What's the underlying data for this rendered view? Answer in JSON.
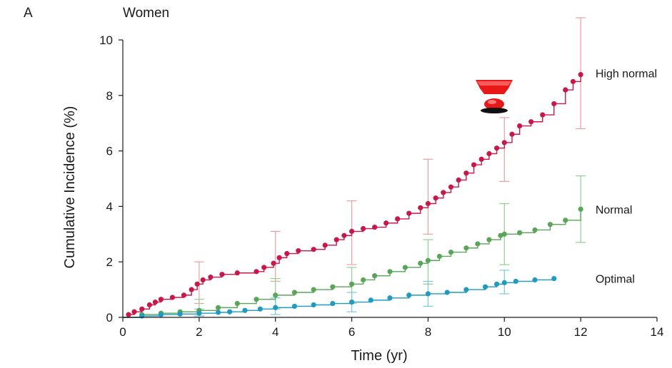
{
  "panel_letter": "A",
  "chart_data": {
    "type": "line",
    "title": "Women",
    "xlabel": "Time (yr)",
    "ylabel": "Cumulative Incidence (%)",
    "xlim": [
      0,
      14
    ],
    "ylim": [
      0,
      10
    ],
    "x_ticks": [
      0,
      2,
      4,
      6,
      8,
      10,
      12,
      14
    ],
    "y_ticks": [
      0,
      2,
      4,
      6,
      8,
      10
    ],
    "grid": false,
    "legend": "direct labels at right end of each series",
    "series": [
      {
        "name": "High normal",
        "color": "#c8184a",
        "error_color": "#e8a0a0",
        "points": [
          [
            0,
            0
          ],
          [
            0.15,
            0.1
          ],
          [
            0.3,
            0.2
          ],
          [
            0.5,
            0.3
          ],
          [
            0.7,
            0.45
          ],
          [
            0.85,
            0.55
          ],
          [
            1.0,
            0.65
          ],
          [
            1.3,
            0.72
          ],
          [
            1.6,
            0.8
          ],
          [
            1.8,
            1.0
          ],
          [
            1.95,
            1.2
          ],
          [
            2.1,
            1.35
          ],
          [
            2.3,
            1.45
          ],
          [
            2.6,
            1.55
          ],
          [
            3.0,
            1.6
          ],
          [
            3.5,
            1.65
          ],
          [
            3.7,
            1.8
          ],
          [
            3.95,
            1.95
          ],
          [
            4.1,
            2.15
          ],
          [
            4.3,
            2.3
          ],
          [
            4.6,
            2.4
          ],
          [
            5.0,
            2.45
          ],
          [
            5.3,
            2.6
          ],
          [
            5.6,
            2.8
          ],
          [
            5.8,
            2.95
          ],
          [
            6.0,
            3.1
          ],
          [
            6.3,
            3.2
          ],
          [
            6.6,
            3.25
          ],
          [
            6.9,
            3.4
          ],
          [
            7.2,
            3.55
          ],
          [
            7.5,
            3.75
          ],
          [
            7.8,
            3.95
          ],
          [
            8.0,
            4.1
          ],
          [
            8.2,
            4.3
          ],
          [
            8.4,
            4.5
          ],
          [
            8.6,
            4.7
          ],
          [
            8.8,
            4.95
          ],
          [
            9.0,
            5.2
          ],
          [
            9.2,
            5.5
          ],
          [
            9.4,
            5.7
          ],
          [
            9.6,
            5.9
          ],
          [
            9.8,
            6.1
          ],
          [
            10.0,
            6.3
          ],
          [
            10.2,
            6.6
          ],
          [
            10.4,
            6.9
          ],
          [
            10.7,
            7.05
          ],
          [
            11.0,
            7.3
          ],
          [
            11.3,
            7.7
          ],
          [
            11.6,
            8.2
          ],
          [
            11.8,
            8.5
          ],
          [
            12.0,
            8.75
          ]
        ],
        "error_bars": [
          {
            "x": 2,
            "y": 1.2,
            "low": 0.5,
            "high": 2.0
          },
          {
            "x": 4,
            "y": 2.1,
            "low": 1.3,
            "high": 3.1
          },
          {
            "x": 6,
            "y": 3.1,
            "low": 1.9,
            "high": 4.2
          },
          {
            "x": 8,
            "y": 4.35,
            "low": 3.0,
            "high": 5.7
          },
          {
            "x": 10,
            "y": 6.3,
            "low": 4.9,
            "high": 7.2
          },
          {
            "x": 12,
            "y": 8.75,
            "low": 6.8,
            "high": 10.8
          }
        ],
        "label_position": [
          12.2,
          8.8
        ]
      },
      {
        "name": "Normal",
        "color": "#5aa55a",
        "error_color": "#8fcf8f",
        "points": [
          [
            0,
            0
          ],
          [
            0.5,
            0.1
          ],
          [
            1.0,
            0.15
          ],
          [
            1.5,
            0.2
          ],
          [
            2.0,
            0.25
          ],
          [
            2.5,
            0.35
          ],
          [
            3.0,
            0.5
          ],
          [
            3.5,
            0.65
          ],
          [
            4.0,
            0.8
          ],
          [
            4.5,
            0.9
          ],
          [
            5.0,
            1.0
          ],
          [
            5.5,
            1.1
          ],
          [
            6.0,
            1.2
          ],
          [
            6.3,
            1.35
          ],
          [
            6.6,
            1.5
          ],
          [
            7.0,
            1.65
          ],
          [
            7.4,
            1.8
          ],
          [
            7.8,
            1.95
          ],
          [
            8.0,
            2.05
          ],
          [
            8.3,
            2.2
          ],
          [
            8.6,
            2.35
          ],
          [
            9.0,
            2.5
          ],
          [
            9.3,
            2.65
          ],
          [
            9.6,
            2.8
          ],
          [
            9.9,
            2.95
          ],
          [
            10.0,
            3.0
          ],
          [
            10.4,
            3.05
          ],
          [
            10.8,
            3.15
          ],
          [
            11.2,
            3.35
          ],
          [
            11.6,
            3.5
          ],
          [
            12.0,
            3.9
          ]
        ],
        "error_bars": [
          {
            "x": 2,
            "y": 0.25,
            "low": 0.05,
            "high": 0.65
          },
          {
            "x": 4,
            "y": 0.8,
            "low": 0.3,
            "high": 1.4
          },
          {
            "x": 6,
            "y": 1.2,
            "low": 0.5,
            "high": 1.8
          },
          {
            "x": 8,
            "y": 2.05,
            "low": 1.2,
            "high": 2.8
          },
          {
            "x": 10,
            "y": 3.0,
            "low": 1.9,
            "high": 4.1
          },
          {
            "x": 12,
            "y": 3.9,
            "low": 2.7,
            "high": 5.1
          }
        ],
        "label_position": [
          12.2,
          3.9
        ]
      },
      {
        "name": "Optimal",
        "color": "#1e9bbf",
        "error_color": "#7cc8dc",
        "points": [
          [
            0,
            0
          ],
          [
            0.5,
            0.05
          ],
          [
            1.0,
            0.1
          ],
          [
            1.5,
            0.12
          ],
          [
            2.0,
            0.15
          ],
          [
            2.5,
            0.18
          ],
          [
            2.8,
            0.2
          ],
          [
            3.2,
            0.25
          ],
          [
            3.6,
            0.3
          ],
          [
            4.0,
            0.35
          ],
          [
            4.5,
            0.4
          ],
          [
            5.0,
            0.45
          ],
          [
            5.5,
            0.5
          ],
          [
            6.0,
            0.55
          ],
          [
            6.5,
            0.62
          ],
          [
            7.0,
            0.7
          ],
          [
            7.5,
            0.8
          ],
          [
            8.0,
            0.85
          ],
          [
            8.5,
            0.9
          ],
          [
            9.0,
            1.0
          ],
          [
            9.5,
            1.1
          ],
          [
            9.8,
            1.2
          ],
          [
            10.0,
            1.25
          ],
          [
            10.3,
            1.3
          ],
          [
            10.8,
            1.35
          ],
          [
            11.3,
            1.4
          ]
        ],
        "error_bars": [
          {
            "x": 2,
            "y": 0.15,
            "low": 0.05,
            "high": 0.3
          },
          {
            "x": 4,
            "y": 0.35,
            "low": 0.1,
            "high": 0.7
          },
          {
            "x": 6,
            "y": 0.55,
            "low": 0.2,
            "high": 0.9
          },
          {
            "x": 8,
            "y": 0.85,
            "low": 0.4,
            "high": 1.3
          },
          {
            "x": 10,
            "y": 1.25,
            "low": 0.85,
            "high": 1.7
          }
        ],
        "label_position": [
          12.2,
          1.4
        ]
      }
    ]
  }
}
